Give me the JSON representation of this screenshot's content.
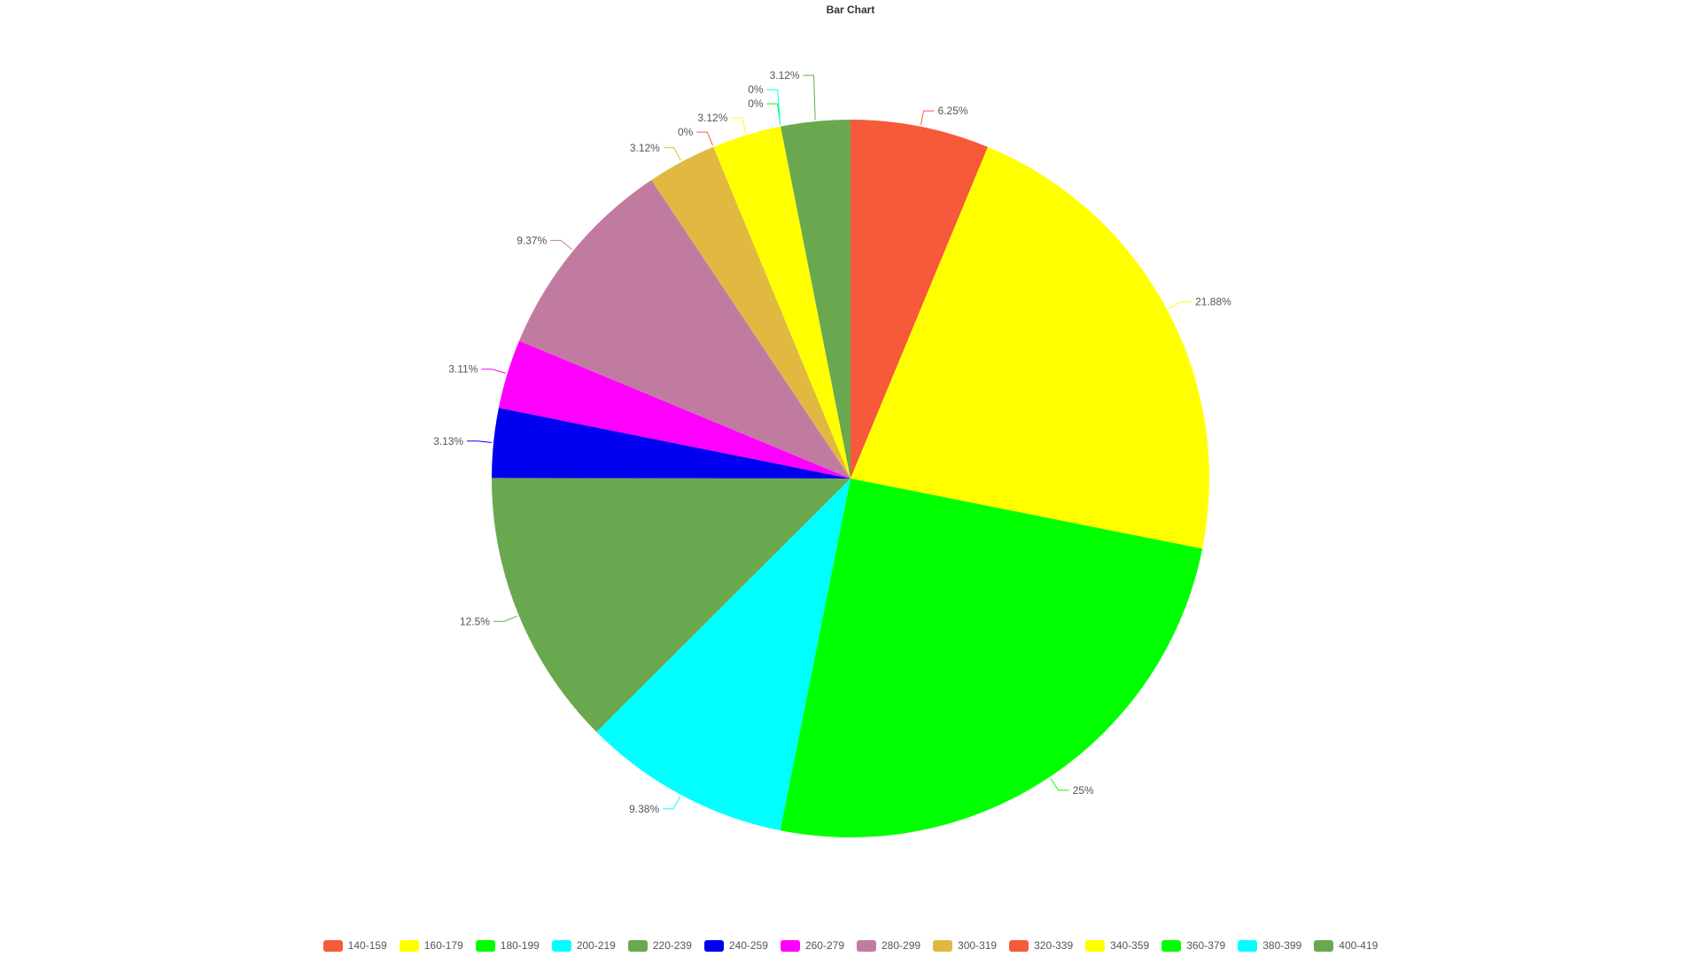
{
  "chart_data": {
    "type": "pie",
    "title": "Bar Chart",
    "legend_position": "bottom",
    "slices": [
      {
        "name": "140-159",
        "value": 6.25,
        "label": "6.25%",
        "color": "#f65a3a"
      },
      {
        "name": "160-179",
        "value": 21.88,
        "label": "21.88%",
        "color": "#ffff00"
      },
      {
        "name": "180-199",
        "value": 25,
        "label": "25%",
        "color": "#00ff00"
      },
      {
        "name": "200-219",
        "value": 9.38,
        "label": "9.38%",
        "color": "#00ffff"
      },
      {
        "name": "220-239",
        "value": 12.5,
        "label": "12.5%",
        "color": "#6aa84f"
      },
      {
        "name": "240-259",
        "value": 3.13,
        "label": "3.13%",
        "color": "#0000ee"
      },
      {
        "name": "260-279",
        "value": 3.11,
        "label": "3.11%",
        "color": "#ff00ff"
      },
      {
        "name": "280-299",
        "value": 9.37,
        "label": "9.37%",
        "color": "#c27ba0"
      },
      {
        "name": "300-319",
        "value": 3.12,
        "label": "3.12%",
        "color": "#e1b941"
      },
      {
        "name": "320-339",
        "value": 0,
        "label": "0%",
        "color": "#f65a3a"
      },
      {
        "name": "340-359",
        "value": 3.12,
        "label": "3.12%",
        "color": "#ffff00"
      },
      {
        "name": "360-379",
        "value": 0,
        "label": "0%",
        "color": "#00ff00"
      },
      {
        "name": "380-399",
        "value": 0,
        "label": "0%",
        "color": "#00ffff"
      },
      {
        "name": "400-419",
        "value": 3.12,
        "label": "3.12%",
        "color": "#6aa84f"
      }
    ]
  }
}
